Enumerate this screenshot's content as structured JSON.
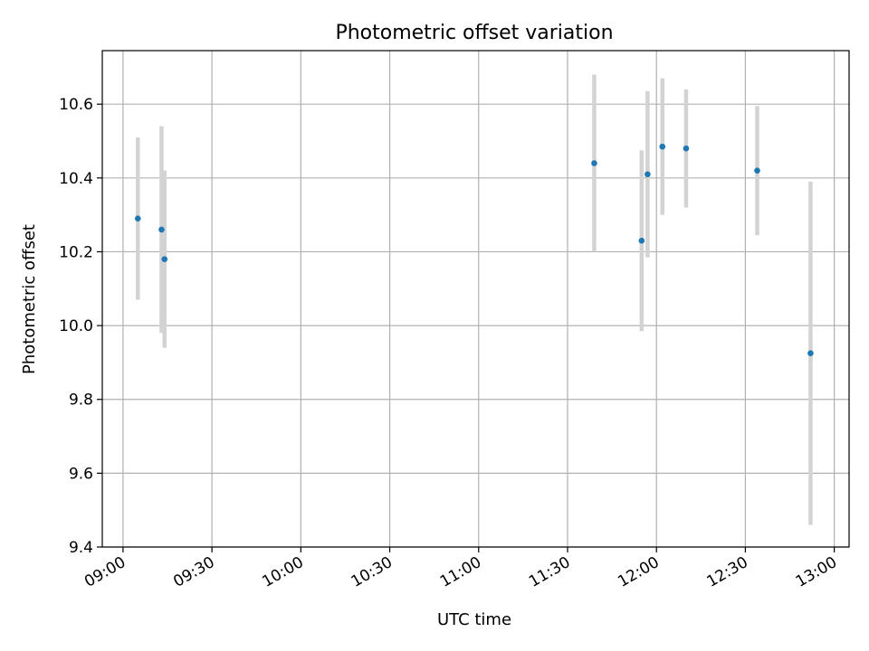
{
  "chart_data": {
    "type": "scatter",
    "title": "Photometric offset variation",
    "xlabel": "UTC time",
    "ylabel": "Photometric offset",
    "x_axis_type": "time",
    "xlim": [
      "08:53",
      "13:05"
    ],
    "ylim": [
      9.4,
      10.745
    ],
    "x_ticks": [
      "09:00",
      "09:30",
      "10:00",
      "10:30",
      "11:00",
      "11:30",
      "12:00",
      "12:30",
      "13:00"
    ],
    "y_ticks": [
      "9.4",
      "9.6",
      "9.8",
      "10.0",
      "10.2",
      "10.4",
      "10.6"
    ],
    "grid": true,
    "points": [
      {
        "x": "09:05",
        "y": 10.29,
        "err": 0.22
      },
      {
        "x": "09:13",
        "y": 10.26,
        "err": 0.28
      },
      {
        "x": "09:14",
        "y": 10.18,
        "err": 0.24
      },
      {
        "x": "11:39",
        "y": 10.44,
        "err": 0.24
      },
      {
        "x": "11:55",
        "y": 10.23,
        "err": 0.245
      },
      {
        "x": "11:57",
        "y": 10.41,
        "err": 0.225
      },
      {
        "x": "12:02",
        "y": 10.485,
        "err": 0.185
      },
      {
        "x": "12:10",
        "y": 10.48,
        "err": 0.16
      },
      {
        "x": "12:34",
        "y": 10.42,
        "err": 0.175
      },
      {
        "x": "12:52",
        "y": 9.925,
        "err": 0.465
      }
    ],
    "colors": {
      "point": "#1f77b4",
      "errorbar": "#d3d3d3",
      "grid": "#b0b0b0",
      "axes": "#000000"
    }
  }
}
